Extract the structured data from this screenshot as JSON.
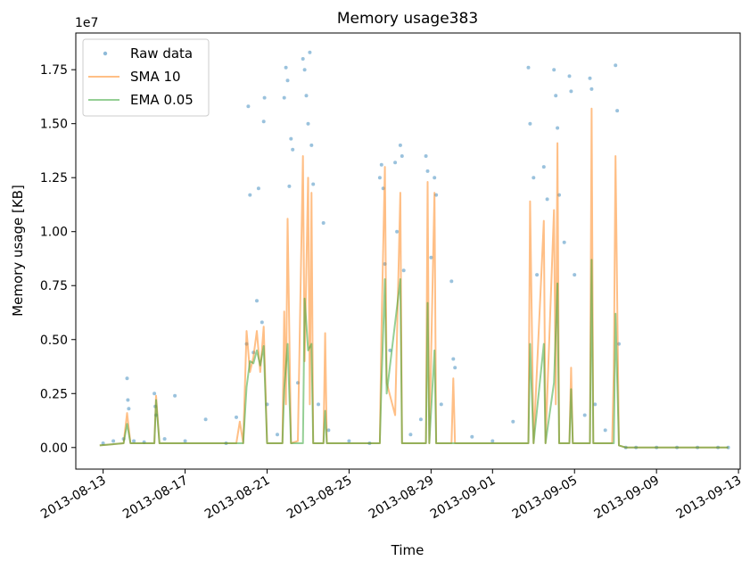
{
  "chart_data": {
    "type": "line",
    "title": "Memory usage383",
    "xlabel": "Time",
    "ylabel": "Memory usage [KB]",
    "y_scale_label": "1e7",
    "xlim": [
      "2013-08-11T16:00",
      "2013-09-13T02:00"
    ],
    "ylim": [
      -1000000,
      19200000
    ],
    "x_ticks": [
      {
        "date": "2013-08-13",
        "label": "2013-08-13"
      },
      {
        "date": "2013-08-17",
        "label": "2013-08-17"
      },
      {
        "date": "2013-08-21",
        "label": "2013-08-21"
      },
      {
        "date": "2013-08-25",
        "label": "2013-08-25"
      },
      {
        "date": "2013-08-29",
        "label": "2013-08-29"
      },
      {
        "date": "2013-09-01",
        "label": "2013-09-01"
      },
      {
        "date": "2013-09-05",
        "label": "2013-09-05"
      },
      {
        "date": "2013-09-09",
        "label": "2013-09-09"
      },
      {
        "date": "2013-09-13",
        "label": "2013-09-13"
      }
    ],
    "y_ticks": [
      {
        "value": 0,
        "label": "0.00"
      },
      {
        "value": 2500000,
        "label": "0.25"
      },
      {
        "value": 5000000,
        "label": "0.50"
      },
      {
        "value": 7500000,
        "label": "0.75"
      },
      {
        "value": 10000000,
        "label": "1.00"
      },
      {
        "value": 12500000,
        "label": "1.25"
      },
      {
        "value": 15000000,
        "label": "1.50"
      },
      {
        "value": 17500000,
        "label": "1.75"
      }
    ],
    "legend": {
      "position": "upper-left",
      "entries": [
        "Raw data",
        "SMA 10",
        "EMA 0.05"
      ]
    },
    "series": [
      {
        "name": "Raw data",
        "style": "scatter",
        "color": "#1f77b4",
        "points": [
          [
            "2013-08-13T00:00",
            200000
          ],
          [
            "2013-08-13T12:00",
            300000
          ],
          [
            "2013-08-14T00:00",
            400000
          ],
          [
            "2013-08-14T04:00",
            3200000
          ],
          [
            "2013-08-14T05:00",
            2200000
          ],
          [
            "2013-08-14T06:00",
            1800000
          ],
          [
            "2013-08-14T12:00",
            300000
          ],
          [
            "2013-08-15T00:00",
            250000
          ],
          [
            "2013-08-15T12:00",
            2500000
          ],
          [
            "2013-08-15T13:00",
            1900000
          ],
          [
            "2013-08-15T14:00",
            1500000
          ],
          [
            "2013-08-16T00:00",
            400000
          ],
          [
            "2013-08-16T12:00",
            2400000
          ],
          [
            "2013-08-17T00:00",
            300000
          ],
          [
            "2013-08-18T00:00",
            1300000
          ],
          [
            "2013-08-19T00:00",
            200000
          ],
          [
            "2013-08-19T12:00",
            1400000
          ],
          [
            "2013-08-20T00:00",
            4800000
          ],
          [
            "2013-08-20T02:00",
            15800000
          ],
          [
            "2013-08-20T04:00",
            11700000
          ],
          [
            "2013-08-20T08:00",
            4400000
          ],
          [
            "2013-08-20T12:00",
            6800000
          ],
          [
            "2013-08-20T14:00",
            12000000
          ],
          [
            "2013-08-20T18:00",
            5800000
          ],
          [
            "2013-08-20T20:00",
            15100000
          ],
          [
            "2013-08-20T21:00",
            16200000
          ],
          [
            "2013-08-21T00:00",
            2000000
          ],
          [
            "2013-08-21T12:00",
            600000
          ],
          [
            "2013-08-21T20:00",
            16200000
          ],
          [
            "2013-08-21T22:00",
            17600000
          ],
          [
            "2013-08-22T00:00",
            17000000
          ],
          [
            "2013-08-22T02:00",
            12100000
          ],
          [
            "2013-08-22T04:00",
            14300000
          ],
          [
            "2013-08-22T06:00",
            13800000
          ],
          [
            "2013-08-22T12:00",
            3000000
          ],
          [
            "2013-08-22T18:00",
            18000000
          ],
          [
            "2013-08-22T20:00",
            17500000
          ],
          [
            "2013-08-22T22:00",
            16300000
          ],
          [
            "2013-08-23T00:00",
            15000000
          ],
          [
            "2013-08-23T02:00",
            18300000
          ],
          [
            "2013-08-23T04:00",
            14000000
          ],
          [
            "2013-08-23T06:00",
            12200000
          ],
          [
            "2013-08-23T12:00",
            2000000
          ],
          [
            "2013-08-23T18:00",
            10400000
          ],
          [
            "2013-08-24T00:00",
            800000
          ],
          [
            "2013-08-25T00:00",
            300000
          ],
          [
            "2013-08-26T00:00",
            200000
          ],
          [
            "2013-08-26T12:00",
            12500000
          ],
          [
            "2013-08-26T14:00",
            13100000
          ],
          [
            "2013-08-26T16:00",
            12000000
          ],
          [
            "2013-08-26T18:00",
            8500000
          ],
          [
            "2013-08-27T00:00",
            4500000
          ],
          [
            "2013-08-27T06:00",
            13200000
          ],
          [
            "2013-08-27T08:00",
            10000000
          ],
          [
            "2013-08-27T12:00",
            14000000
          ],
          [
            "2013-08-27T14:00",
            13500000
          ],
          [
            "2013-08-27T16:00",
            8200000
          ],
          [
            "2013-08-28T00:00",
            600000
          ],
          [
            "2013-08-28T12:00",
            1300000
          ],
          [
            "2013-08-28T18:00",
            13500000
          ],
          [
            "2013-08-28T20:00",
            12800000
          ],
          [
            "2013-08-29T00:00",
            8800000
          ],
          [
            "2013-08-29T04:00",
            12500000
          ],
          [
            "2013-08-29T06:00",
            11700000
          ],
          [
            "2013-08-29T12:00",
            2000000
          ],
          [
            "2013-08-30T00:00",
            7700000
          ],
          [
            "2013-08-30T02:00",
            4100000
          ],
          [
            "2013-08-30T04:00",
            3700000
          ],
          [
            "2013-08-31T00:00",
            500000
          ],
          [
            "2013-09-01T00:00",
            300000
          ],
          [
            "2013-09-02T00:00",
            1200000
          ],
          [
            "2013-09-02T18:00",
            17600000
          ],
          [
            "2013-09-02T20:00",
            15000000
          ],
          [
            "2013-09-03T00:00",
            12500000
          ],
          [
            "2013-09-03T04:00",
            8000000
          ],
          [
            "2013-09-03T12:00",
            13000000
          ],
          [
            "2013-09-03T16:00",
            11500000
          ],
          [
            "2013-09-04T00:00",
            17500000
          ],
          [
            "2013-09-04T02:00",
            16300000
          ],
          [
            "2013-09-04T04:00",
            14800000
          ],
          [
            "2013-09-04T06:00",
            11700000
          ],
          [
            "2013-09-04T12:00",
            9500000
          ],
          [
            "2013-09-04T18:00",
            17200000
          ],
          [
            "2013-09-04T20:00",
            16500000
          ],
          [
            "2013-09-05T00:00",
            8000000
          ],
          [
            "2013-09-05T12:00",
            1500000
          ],
          [
            "2013-09-05T18:00",
            17100000
          ],
          [
            "2013-09-05T20:00",
            16600000
          ],
          [
            "2013-09-06T00:00",
            2000000
          ],
          [
            "2013-09-06T12:00",
            800000
          ],
          [
            "2013-09-07T00:00",
            17700000
          ],
          [
            "2013-09-07T02:00",
            15600000
          ],
          [
            "2013-09-07T04:00",
            4800000
          ],
          [
            "2013-09-07T12:00",
            0
          ],
          [
            "2013-09-08T00:00",
            0
          ],
          [
            "2013-09-09T00:00",
            0
          ],
          [
            "2013-09-10T00:00",
            0
          ],
          [
            "2013-09-11T00:00",
            0
          ],
          [
            "2013-09-12T00:00",
            0
          ],
          [
            "2013-09-12T12:00",
            0
          ]
        ]
      },
      {
        "name": "SMA 10",
        "style": "line",
        "color": "#ff7f0e",
        "points": [
          [
            "2013-08-12T20:00",
            100000
          ],
          [
            "2013-08-14T00:00",
            200000
          ],
          [
            "2013-08-14T04:00",
            1600000
          ],
          [
            "2013-08-14T08:00",
            200000
          ],
          [
            "2013-08-15T12:00",
            200000
          ],
          [
            "2013-08-15T14:00",
            2400000
          ],
          [
            "2013-08-15T18:00",
            200000
          ],
          [
            "2013-08-19T12:00",
            200000
          ],
          [
            "2013-08-19T16:00",
            1200000
          ],
          [
            "2013-08-19T20:00",
            200000
          ],
          [
            "2013-08-20T00:00",
            5400000
          ],
          [
            "2013-08-20T04:00",
            3500000
          ],
          [
            "2013-08-20T08:00",
            4200000
          ],
          [
            "2013-08-20T12:00",
            5400000
          ],
          [
            "2013-08-20T16:00",
            3500000
          ],
          [
            "2013-08-20T20:00",
            5600000
          ],
          [
            "2013-08-21T00:00",
            200000
          ],
          [
            "2013-08-21T18:00",
            200000
          ],
          [
            "2013-08-21T20:00",
            6300000
          ],
          [
            "2013-08-21T22:00",
            2000000
          ],
          [
            "2013-08-22T00:00",
            10600000
          ],
          [
            "2013-08-22T04:00",
            200000
          ],
          [
            "2013-08-22T12:00",
            300000
          ],
          [
            "2013-08-22T18:00",
            13500000
          ],
          [
            "2013-08-22T20:00",
            4000000
          ],
          [
            "2013-08-23T00:00",
            12500000
          ],
          [
            "2013-08-23T02:00",
            2000000
          ],
          [
            "2013-08-23T04:00",
            11800000
          ],
          [
            "2013-08-23T06:00",
            200000
          ],
          [
            "2013-08-23T18:00",
            200000
          ],
          [
            "2013-08-23T20:00",
            5300000
          ],
          [
            "2013-08-23T22:00",
            200000
          ],
          [
            "2013-08-26T12:00",
            200000
          ],
          [
            "2013-08-26T14:00",
            5500000
          ],
          [
            "2013-08-26T18:00",
            13000000
          ],
          [
            "2013-08-26T20:00",
            3000000
          ],
          [
            "2013-08-27T06:00",
            1500000
          ],
          [
            "2013-08-27T12:00",
            11800000
          ],
          [
            "2013-08-27T14:00",
            200000
          ],
          [
            "2013-08-28T18:00",
            200000
          ],
          [
            "2013-08-28T20:00",
            12300000
          ],
          [
            "2013-08-28T22:00",
            200000
          ],
          [
            "2013-08-29T04:00",
            11800000
          ],
          [
            "2013-08-29T06:00",
            200000
          ],
          [
            "2013-08-30T00:00",
            200000
          ],
          [
            "2013-08-30T02:00",
            3200000
          ],
          [
            "2013-08-30T04:00",
            200000
          ],
          [
            "2013-09-02T18:00",
            200000
          ],
          [
            "2013-09-02T20:00",
            11400000
          ],
          [
            "2013-09-03T00:00",
            200000
          ],
          [
            "2013-09-03T12:00",
            10500000
          ],
          [
            "2013-09-03T14:00",
            200000
          ],
          [
            "2013-09-04T00:00",
            11000000
          ],
          [
            "2013-09-04T02:00",
            2000000
          ],
          [
            "2013-09-04T04:00",
            14100000
          ],
          [
            "2013-09-04T06:00",
            200000
          ],
          [
            "2013-09-04T18:00",
            200000
          ],
          [
            "2013-09-04T20:00",
            3700000
          ],
          [
            "2013-09-04T22:00",
            200000
          ],
          [
            "2013-09-05T18:00",
            200000
          ],
          [
            "2013-09-05T20:00",
            15700000
          ],
          [
            "2013-09-05T22:00",
            200000
          ],
          [
            "2013-09-06T20:00",
            200000
          ],
          [
            "2013-09-06T22:00",
            3600000
          ],
          [
            "2013-09-07T00:00",
            13500000
          ],
          [
            "2013-09-07T04:00",
            100000
          ],
          [
            "2013-09-07T12:00",
            0
          ],
          [
            "2013-09-12T12:00",
            0
          ]
        ]
      },
      {
        "name": "EMA 0.05",
        "style": "line",
        "color": "#2ca02c",
        "points": [
          [
            "2013-08-12T20:00",
            100000
          ],
          [
            "2013-08-14T00:00",
            200000
          ],
          [
            "2013-08-14T04:00",
            1100000
          ],
          [
            "2013-08-14T08:00",
            200000
          ],
          [
            "2013-08-15T12:00",
            200000
          ],
          [
            "2013-08-15T14:00",
            2200000
          ],
          [
            "2013-08-15T18:00",
            200000
          ],
          [
            "2013-08-19T20:00",
            200000
          ],
          [
            "2013-08-20T00:00",
            2800000
          ],
          [
            "2013-08-20T04:00",
            4000000
          ],
          [
            "2013-08-20T08:00",
            3900000
          ],
          [
            "2013-08-20T12:00",
            4500000
          ],
          [
            "2013-08-20T16:00",
            3800000
          ],
          [
            "2013-08-20T20:00",
            4700000
          ],
          [
            "2013-08-21T00:00",
            200000
          ],
          [
            "2013-08-21T18:00",
            200000
          ],
          [
            "2013-08-21T20:00",
            2700000
          ],
          [
            "2013-08-22T00:00",
            4800000
          ],
          [
            "2013-08-22T04:00",
            200000
          ],
          [
            "2013-08-22T18:00",
            200000
          ],
          [
            "2013-08-22T20:00",
            6900000
          ],
          [
            "2013-08-23T00:00",
            4500000
          ],
          [
            "2013-08-23T04:00",
            4800000
          ],
          [
            "2013-08-23T06:00",
            200000
          ],
          [
            "2013-08-23T18:00",
            200000
          ],
          [
            "2013-08-23T20:00",
            1700000
          ],
          [
            "2013-08-23T22:00",
            200000
          ],
          [
            "2013-08-26T12:00",
            200000
          ],
          [
            "2013-08-26T14:00",
            3000000
          ],
          [
            "2013-08-26T18:00",
            7800000
          ],
          [
            "2013-08-26T20:00",
            2500000
          ],
          [
            "2013-08-27T12:00",
            7800000
          ],
          [
            "2013-08-27T14:00",
            200000
          ],
          [
            "2013-08-28T18:00",
            200000
          ],
          [
            "2013-08-28T20:00",
            6700000
          ],
          [
            "2013-08-28T22:00",
            200000
          ],
          [
            "2013-08-29T04:00",
            4500000
          ],
          [
            "2013-08-29T06:00",
            200000
          ],
          [
            "2013-09-02T18:00",
            200000
          ],
          [
            "2013-09-02T20:00",
            4800000
          ],
          [
            "2013-09-03T00:00",
            200000
          ],
          [
            "2013-09-03T12:00",
            4800000
          ],
          [
            "2013-09-03T14:00",
            200000
          ],
          [
            "2013-09-04T00:00",
            3000000
          ],
          [
            "2013-09-04T04:00",
            7600000
          ],
          [
            "2013-09-04T06:00",
            200000
          ],
          [
            "2013-09-04T18:00",
            200000
          ],
          [
            "2013-09-04T20:00",
            2700000
          ],
          [
            "2013-09-04T22:00",
            200000
          ],
          [
            "2013-09-05T18:00",
            200000
          ],
          [
            "2013-09-05T20:00",
            8700000
          ],
          [
            "2013-09-05T22:00",
            200000
          ],
          [
            "2013-09-06T22:00",
            200000
          ],
          [
            "2013-09-07T00:00",
            6200000
          ],
          [
            "2013-09-07T04:00",
            100000
          ],
          [
            "2013-09-07T12:00",
            0
          ],
          [
            "2013-09-12T12:00",
            0
          ]
        ]
      }
    ]
  }
}
